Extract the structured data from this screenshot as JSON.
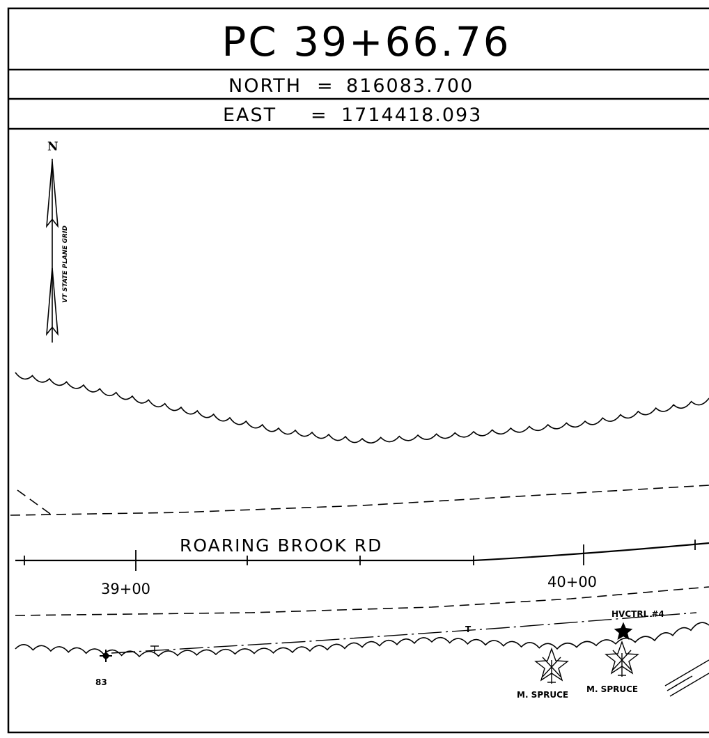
{
  "header": {
    "title": "PC 39+66.76",
    "north_label": "NORTH",
    "north_eq": "=",
    "north_value": "816083.700",
    "east_label": "EAST",
    "east_eq": "=",
    "east_value": "1714418.093"
  },
  "north_arrow": {
    "letter": "N",
    "grid_label": "VT STATE PLANE GRID"
  },
  "road": {
    "name": "ROARING BROOK RD",
    "stations": [
      "39+00",
      "40+00"
    ]
  },
  "features": {
    "point_label": "83",
    "utility_mark": "T",
    "control_label": "HVCTRL #4",
    "tree_1": "M. SPRUCE",
    "tree_2": "M. SPRUCE"
  },
  "colors": {
    "ink": "#000000",
    "paper": "#ffffff"
  }
}
